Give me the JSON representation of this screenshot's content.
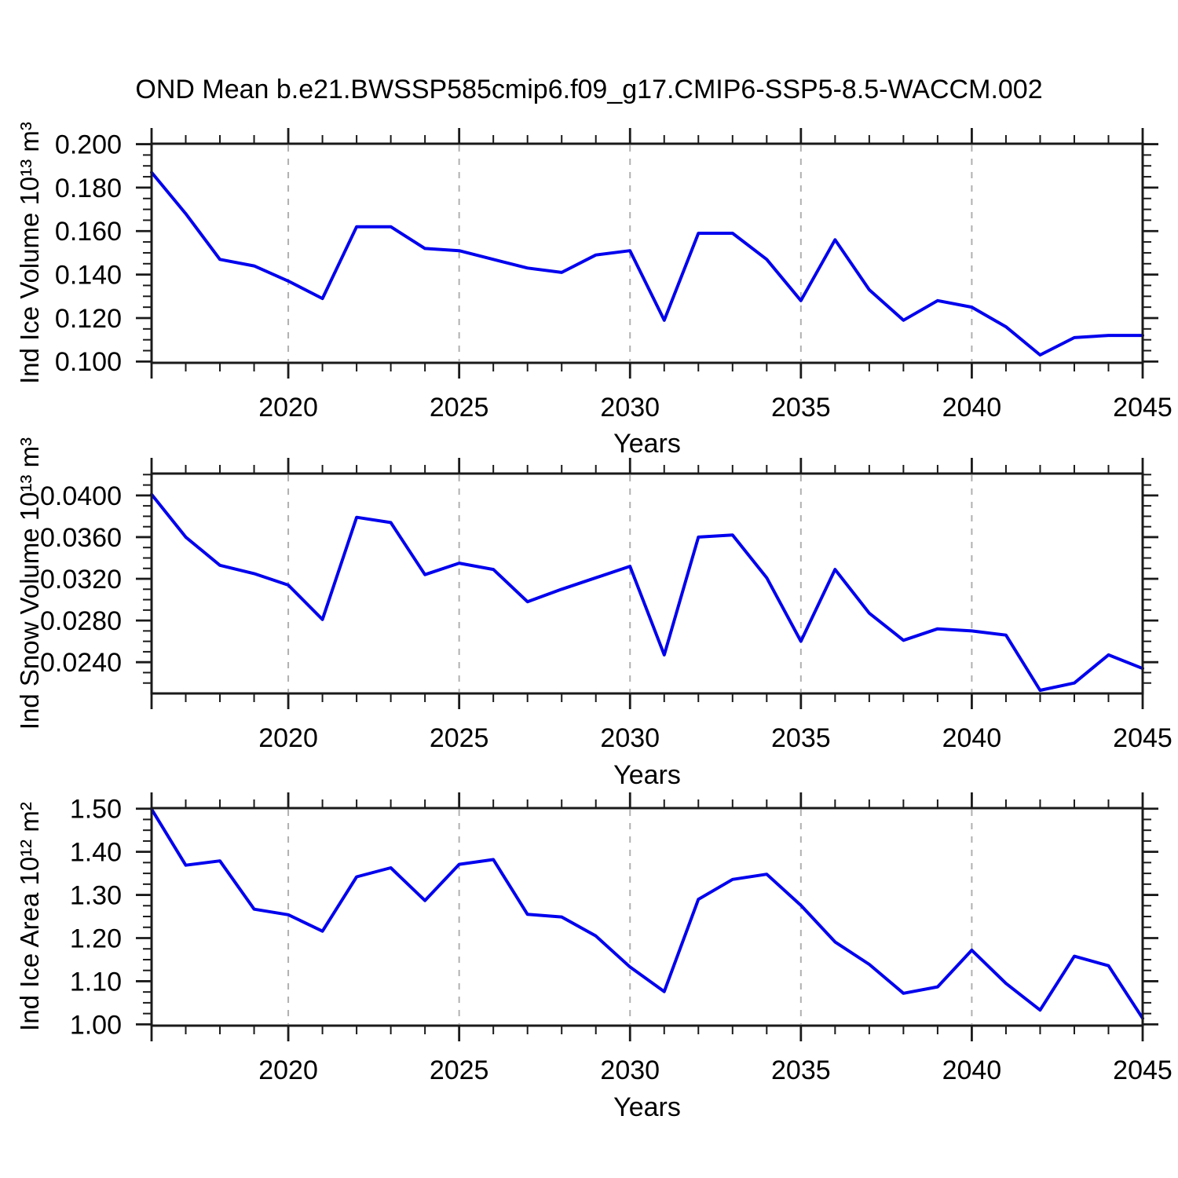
{
  "title": "OND Mean b.e21.BWSSP585cmip6.f09_g17.CMIP6-SSP5-8.5-WACCM.002",
  "line_color": "#0000ee",
  "axis_color": "#1a1a1a",
  "gridline_color": "#b0b0b0",
  "x_axis": {
    "label": "Years",
    "range": [
      2016,
      2045
    ],
    "major_ticks": [
      2016,
      2020,
      2025,
      2030,
      2035,
      2040,
      2045
    ],
    "tick_label_years": [
      2020,
      2025,
      2030,
      2035,
      2040,
      2045
    ],
    "tick_labels": [
      "2020",
      "2025",
      "2030",
      "2035",
      "2040",
      "2045"
    ],
    "minor_step": 1,
    "gridline_years": [
      2020,
      2025,
      2030,
      2035,
      2040
    ]
  },
  "chart_data": [
    {
      "type": "line",
      "ylabel": "Ind Ice Volume 10¹³ m³",
      "xlabel": "Years",
      "legend": "none",
      "grid": "vertical-dashed",
      "x": [
        2016,
        2017,
        2018,
        2019,
        2020,
        2021,
        2022,
        2023,
        2024,
        2025,
        2026,
        2027,
        2028,
        2029,
        2030,
        2031,
        2032,
        2033,
        2034,
        2035,
        2036,
        2037,
        2038,
        2039,
        2040,
        2041,
        2042,
        2043,
        2044,
        2045
      ],
      "values": [
        0.187,
        0.168,
        0.147,
        0.144,
        0.137,
        0.129,
        0.162,
        0.162,
        0.152,
        0.151,
        0.147,
        0.143,
        0.141,
        0.149,
        0.151,
        0.119,
        0.159,
        0.159,
        0.147,
        0.128,
        0.156,
        0.133,
        0.119,
        0.128,
        0.125,
        0.116,
        0.103,
        0.111,
        0.112,
        0.112
      ],
      "ylim": [
        0.0994,
        0.2002
      ],
      "yticks": [
        0.1,
        0.12,
        0.14,
        0.16,
        0.18,
        0.2
      ],
      "ytick_labels": [
        "0.100",
        "0.120",
        "0.140",
        "0.160",
        "0.180",
        "0.200"
      ],
      "ymajor_step": 0.02,
      "yminor_step": 0.005
    },
    {
      "type": "line",
      "ylabel": "Ind Snow Volume 10¹³ m³",
      "xlabel": "Years",
      "legend": "none",
      "grid": "vertical-dashed",
      "x": [
        2016,
        2017,
        2018,
        2019,
        2020,
        2021,
        2022,
        2023,
        2024,
        2025,
        2026,
        2027,
        2028,
        2029,
        2030,
        2031,
        2032,
        2033,
        2034,
        2035,
        2036,
        2037,
        2038,
        2039,
        2040,
        2041,
        2042,
        2043,
        2044,
        2045
      ],
      "values": [
        0.0401,
        0.036,
        0.0333,
        0.0325,
        0.0314,
        0.0281,
        0.0379,
        0.0374,
        0.0324,
        0.0335,
        0.0329,
        0.0298,
        0.031,
        0.0321,
        0.0332,
        0.0247,
        0.036,
        0.0362,
        0.0321,
        0.026,
        0.0329,
        0.0287,
        0.0261,
        0.0272,
        0.027,
        0.0266,
        0.0213,
        0.022,
        0.0247,
        0.0234
      ],
      "ylim": [
        0.021,
        0.0421
      ],
      "yticks": [
        0.024,
        0.028,
        0.032,
        0.036,
        0.04
      ],
      "ytick_labels": [
        "0.0240",
        "0.0280",
        "0.0320",
        "0.0360",
        "0.0400"
      ],
      "ymajor_step": 0.004,
      "yminor_step": 0.001
    },
    {
      "type": "line",
      "ylabel": "Ind Ice Area 10¹² m²",
      "xlabel": "Years",
      "legend": "none",
      "grid": "vertical-dashed",
      "x": [
        2016,
        2017,
        2018,
        2019,
        2020,
        2021,
        2022,
        2023,
        2024,
        2025,
        2026,
        2027,
        2028,
        2029,
        2030,
        2031,
        2032,
        2033,
        2034,
        2035,
        2036,
        2037,
        2038,
        2039,
        2040,
        2041,
        2042,
        2043,
        2044,
        2045
      ],
      "values": [
        1.499,
        1.369,
        1.379,
        1.267,
        1.254,
        1.216,
        1.342,
        1.363,
        1.287,
        1.371,
        1.382,
        1.255,
        1.249,
        1.205,
        1.133,
        1.076,
        1.29,
        1.336,
        1.348,
        1.276,
        1.191,
        1.139,
        1.072,
        1.087,
        1.172,
        1.095,
        1.033,
        1.158,
        1.136,
        1.014
      ],
      "ylim": [
        0.997,
        1.5013
      ],
      "yticks": [
        1.0,
        1.1,
        1.2,
        1.3,
        1.4,
        1.5
      ],
      "ytick_labels": [
        "1.00",
        "1.10",
        "1.20",
        "1.30",
        "1.40",
        "1.50"
      ],
      "ymajor_step": 0.1,
      "yminor_step": 0.025
    }
  ]
}
